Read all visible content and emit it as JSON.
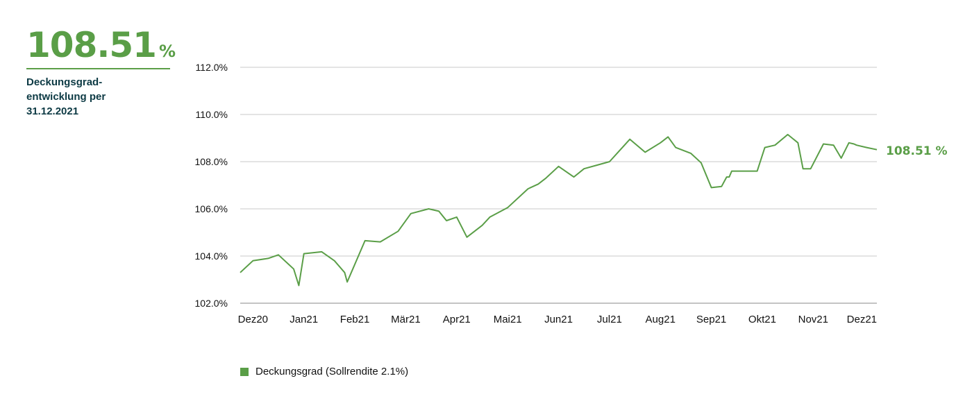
{
  "kpi": {
    "value": "108.51",
    "unit": "%",
    "caption_lines": [
      "Deckungsgrad-",
      "entwicklung per",
      "31.12.2021"
    ]
  },
  "colors": {
    "accent": "#5a9e47",
    "caption": "#0d3a44",
    "grid": "#c8c8c8"
  },
  "chart_data": {
    "type": "line",
    "title": "",
    "xlabel": "",
    "ylabel": "",
    "ylim": [
      102,
      112
    ],
    "xlim": [
      0,
      12.5
    ],
    "y_ticks": [
      102,
      104,
      106,
      108,
      110,
      112
    ],
    "y_tick_labels": [
      "102.0%",
      "104.0%",
      "106.0%",
      "108.0%",
      "110.0%",
      "112.0%"
    ],
    "x_ticks": [
      0.25,
      1.25,
      2.25,
      3.25,
      4.25,
      5.25,
      6.25,
      7.25,
      8.25,
      9.25,
      10.25,
      11.25,
      12.25
    ],
    "x_tick_labels": [
      "Dez20",
      "Jan21",
      "Feb21",
      "Mär21",
      "Apr21",
      "Mai21",
      "Jun21",
      "Jul21",
      "Aug21",
      "Sep21",
      "Okt21",
      "Nov21",
      "Dez21"
    ],
    "grid": true,
    "legend_position": "bottom-left",
    "end_label": "108.51 %",
    "series": [
      {
        "name": "Deckungsgrad (Sollrendite 2.1%)",
        "x": [
          0.0,
          0.25,
          0.55,
          0.75,
          1.05,
          1.15,
          1.25,
          1.6,
          1.85,
          2.05,
          2.1,
          2.45,
          2.75,
          3.1,
          3.35,
          3.7,
          3.9,
          4.05,
          4.25,
          4.45,
          4.75,
          4.9,
          5.25,
          5.65,
          5.85,
          6.0,
          6.25,
          6.55,
          6.75,
          7.0,
          7.25,
          7.65,
          7.95,
          8.25,
          8.4,
          8.55,
          8.85,
          9.05,
          9.25,
          9.45,
          9.55,
          9.6,
          9.65,
          9.9,
          10.15,
          10.3,
          10.5,
          10.75,
          10.95,
          11.05,
          11.2,
          11.45,
          11.65,
          11.8,
          11.95,
          12.05,
          12.1,
          12.3,
          12.5
        ],
        "y": [
          103.3,
          103.8,
          103.9,
          104.05,
          103.45,
          102.75,
          104.1,
          104.18,
          103.8,
          103.3,
          102.9,
          104.65,
          104.6,
          105.05,
          105.8,
          106.0,
          105.9,
          105.5,
          105.65,
          104.8,
          105.3,
          105.65,
          106.05,
          106.85,
          107.05,
          107.3,
          107.8,
          107.35,
          107.7,
          107.85,
          108.0,
          108.95,
          108.4,
          108.8,
          109.05,
          108.6,
          108.35,
          107.95,
          106.9,
          106.95,
          107.35,
          107.35,
          107.6,
          107.6,
          107.6,
          108.6,
          108.7,
          109.15,
          108.8,
          107.7,
          107.7,
          108.75,
          108.7,
          108.15,
          108.8,
          108.75,
          108.7,
          108.6,
          108.51
        ]
      }
    ]
  }
}
